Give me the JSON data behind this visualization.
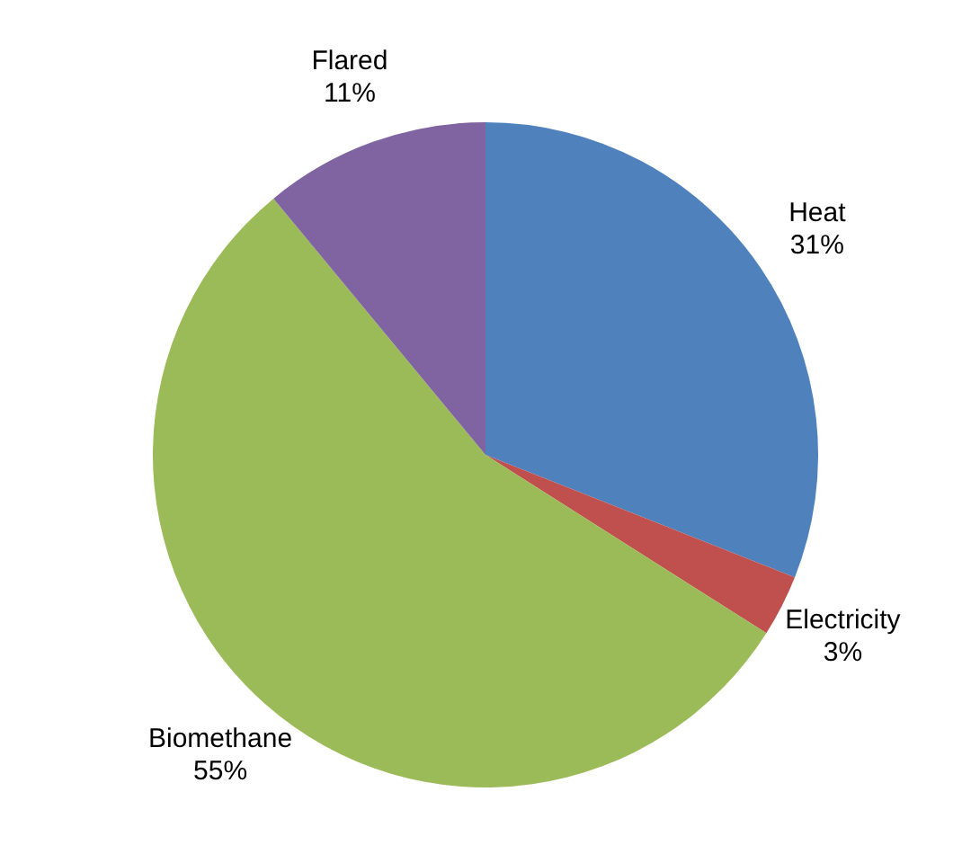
{
  "chart_data": {
    "type": "pie",
    "categories": [
      "Heat",
      "Electricity",
      "Biomethane",
      "Flared"
    ],
    "values": [
      31,
      3,
      55,
      11
    ],
    "colors": [
      "#4f81bd",
      "#c0504d",
      "#9bbb59",
      "#8064a2"
    ],
    "value_labels": [
      "31%",
      "3%",
      "55%",
      "11%"
    ],
    "legend": false
  }
}
